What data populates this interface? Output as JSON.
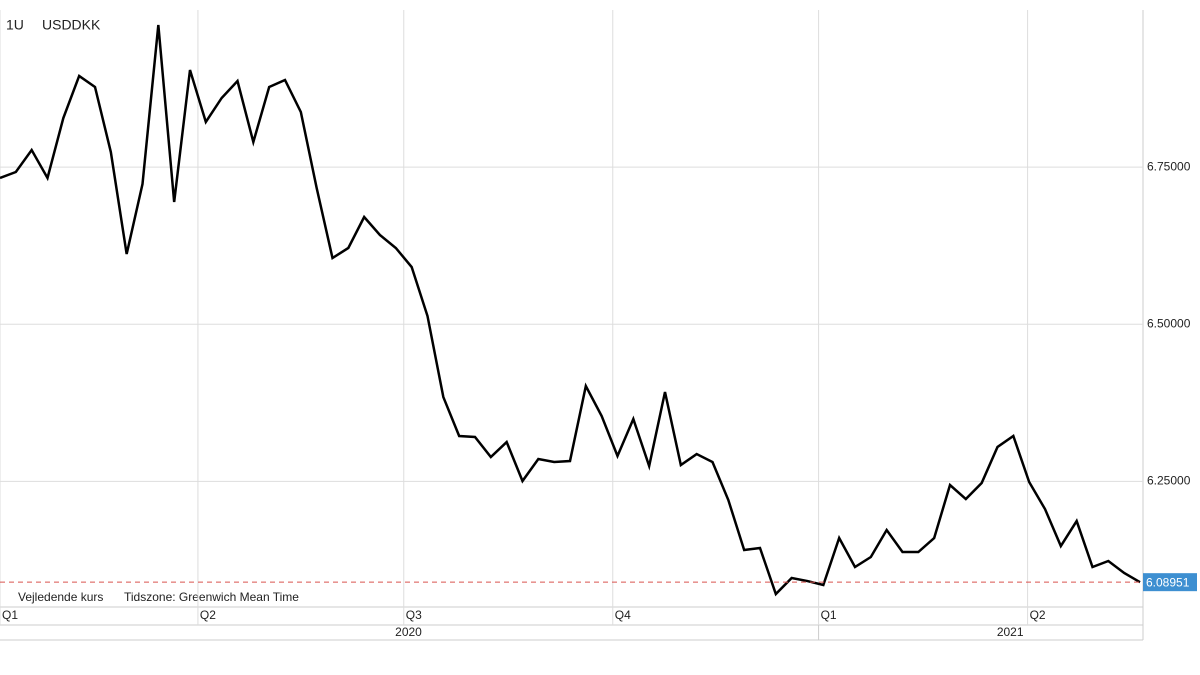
{
  "chart_data": {
    "type": "line",
    "period": "1U",
    "symbol": "USDDKK",
    "note": "Vejledende kurs",
    "timezone": "Tidszone: Greenwich Mean Time",
    "color": "#000000",
    "values": [
      6.7327,
      6.7422,
      6.7772,
      6.7327,
      6.8281,
      6.895,
      6.8775,
      6.774,
      6.6117,
      6.7231,
      6.9761,
      6.6945,
      6.9045,
      6.8218,
      6.86,
      6.887,
      6.7899,
      6.8775,
      6.8886,
      6.8377,
      6.7167,
      6.6053,
      6.6213,
      6.6706,
      6.6419,
      6.6213,
      6.591,
      6.513,
      6.3841,
      6.3221,
      6.3205,
      6.2887,
      6.3125,
      6.2505,
      6.2855,
      6.2807,
      6.2823,
      6.4017,
      6.3539,
      6.2903,
      6.3491,
      6.2743,
      6.3921,
      6.2759,
      6.2934,
      6.2807,
      6.2202,
      6.1407,
      6.1439,
      6.0706,
      6.0961,
      6.0913,
      6.085,
      6.1598,
      6.1136,
      6.1295,
      6.1725,
      6.1375,
      6.1375,
      6.1598,
      6.2441,
      6.2218,
      6.2473,
      6.3046,
      6.3221,
      6.2489,
      6.2059,
      6.147,
      6.1868,
      6.1136,
      6.1232,
      6.1041,
      6.08951
    ],
    "xlim": [
      0,
      72
    ],
    "xticks": [
      {
        "value": 0,
        "label": "Q1"
      },
      {
        "value": 12.5,
        "label": "Q2"
      },
      {
        "value": 25.5,
        "label": "Q3"
      },
      {
        "value": 38.7,
        "label": "Q4"
      },
      {
        "value": 51.7,
        "label": "Q1"
      },
      {
        "value": 64.9,
        "label": "Q2"
      }
    ],
    "year_ticks": [
      {
        "value": 25.8,
        "label": "2020"
      },
      {
        "value": 63.8,
        "label": "2021"
      }
    ],
    "ylim": [
      6.05,
      7.0
    ],
    "yticks": [
      {
        "value": 6.25,
        "label": "6.25000"
      },
      {
        "value": 6.5,
        "label": "6.50000"
      },
      {
        "value": 6.75,
        "label": "6.75000"
      }
    ],
    "grid": true
  }
}
